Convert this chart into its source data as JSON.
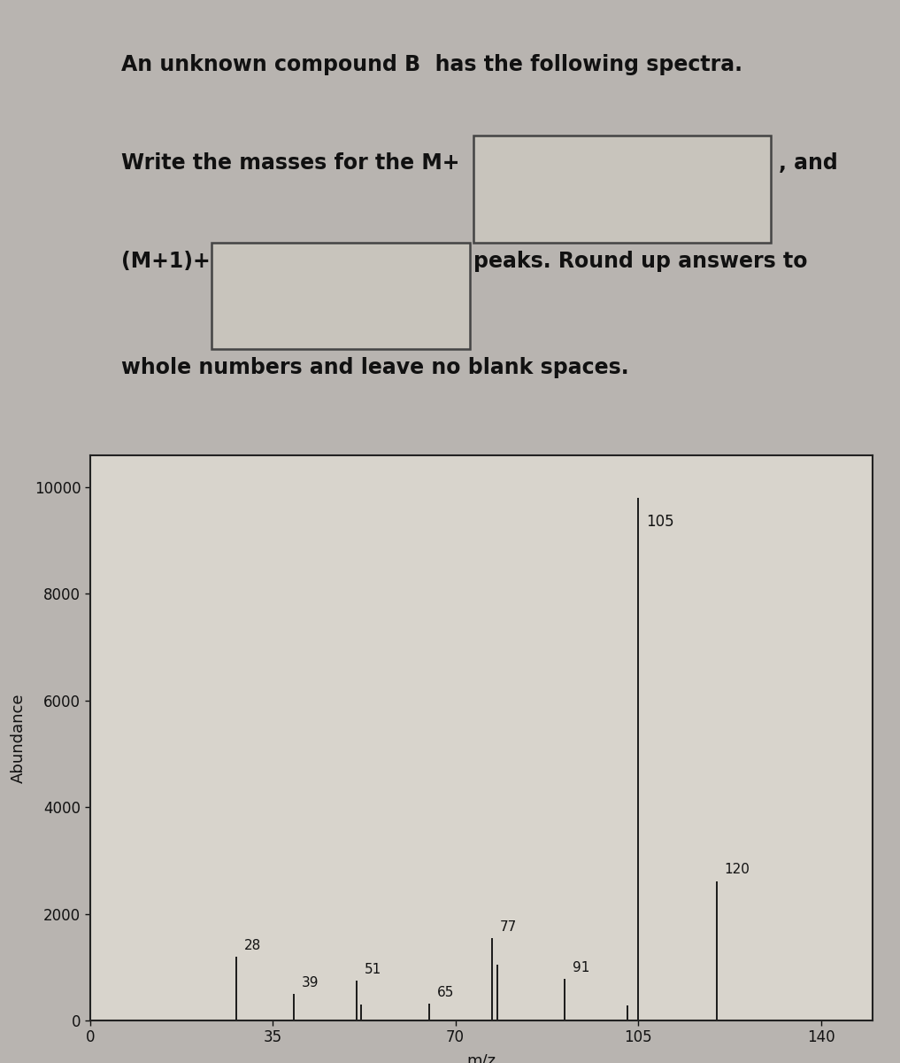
{
  "peaks": [
    {
      "mz": 28,
      "abundance": 1200,
      "label": "28"
    },
    {
      "mz": 39,
      "abundance": 500,
      "label": "39"
    },
    {
      "mz": 51,
      "abundance": 750,
      "label": "51"
    },
    {
      "mz": 52,
      "abundance": 300,
      "label": ""
    },
    {
      "mz": 65,
      "abundance": 320,
      "label": "65"
    },
    {
      "mz": 77,
      "abundance": 1550,
      "label": "77"
    },
    {
      "mz": 78,
      "abundance": 1050,
      "label": ""
    },
    {
      "mz": 91,
      "abundance": 780,
      "label": "91"
    },
    {
      "mz": 103,
      "abundance": 280,
      "label": ""
    },
    {
      "mz": 105,
      "abundance": 9800,
      "label": "105"
    },
    {
      "mz": 120,
      "abundance": 2600,
      "label": "120"
    }
  ],
  "xlim": [
    0,
    150
  ],
  "ylim": [
    0,
    10600
  ],
  "yticks": [
    0,
    2000,
    4000,
    6000,
    8000,
    10000
  ],
  "xticks": [
    0,
    35,
    70,
    105,
    140
  ],
  "xlabel": "m/z",
  "ylabel": "Abundance",
  "bar_color": "#1a1a1a",
  "bg_color": "#b8b4b0",
  "plot_bg_color": "#d8d4cc",
  "box_color": "#c8c4bc",
  "text_color": "#111111",
  "line1": "An unknown compound B  has the following spectra.",
  "line2_pre": "Write the masses for the M+",
  "line2_post": ", and",
  "line3_pre": "(M+1)+",
  "line3_post": "peaks. Round up answers to",
  "line4": "whole numbers and leave no blank spaces.",
  "font_size_header": 17,
  "font_size_axis_label": 13,
  "font_size_tick": 12,
  "font_size_peak_label": 11
}
